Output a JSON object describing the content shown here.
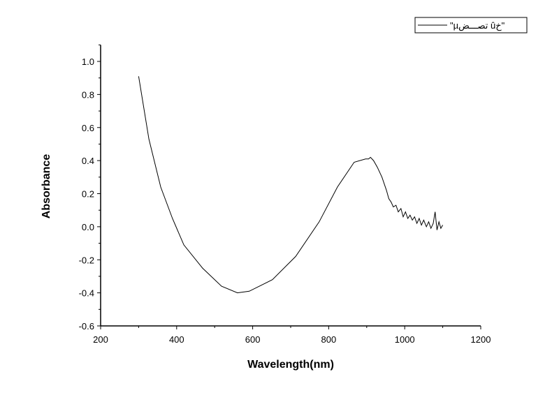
{
  "chart_data": {
    "type": "line",
    "title": "",
    "xlabel": "Wavelength(nm)",
    "ylabel": "Absorbance",
    "xlim": [
      200,
      1200
    ],
    "ylim": [
      -0.6,
      1.1
    ],
    "xticks": [
      200,
      400,
      600,
      800,
      1000,
      1200
    ],
    "yticks": [
      -0.6,
      -0.4,
      -0.2,
      0.0,
      0.2,
      0.4,
      0.6,
      0.8,
      1.0
    ],
    "ytick_labels": [
      "-0.6",
      "-0.4",
      "-0.2",
      "0.0",
      "0.2",
      "0.4",
      "0.6",
      "0.8",
      "1.0"
    ],
    "xtick_labels": [
      "200",
      "400",
      "600",
      "800",
      "1000",
      "1200"
    ],
    "grid": false,
    "legend_position": "top-right",
    "series": [
      {
        "name": "\"µتصـــض ûخ\"",
        "color": "#000000",
        "x": [
          300,
          327,
          358,
          389,
          419,
          468,
          518,
          560,
          591,
          652,
          713,
          775,
          823,
          867,
          897,
          905,
          910,
          918,
          928,
          940,
          952,
          958,
          964,
          970,
          977,
          983,
          990,
          996,
          1002,
          1008,
          1014,
          1020,
          1026,
          1032,
          1038,
          1044,
          1050,
          1057,
          1063,
          1069,
          1075,
          1080,
          1085,
          1090,
          1095,
          1100
        ],
        "y": [
          0.91,
          0.53,
          0.24,
          0.05,
          -0.11,
          -0.25,
          -0.36,
          -0.4,
          -0.39,
          -0.32,
          -0.18,
          0.03,
          0.24,
          0.39,
          0.41,
          0.41,
          0.42,
          0.4,
          0.36,
          0.3,
          0.22,
          0.17,
          0.15,
          0.12,
          0.13,
          0.09,
          0.11,
          0.06,
          0.09,
          0.05,
          0.07,
          0.04,
          0.06,
          0.02,
          0.05,
          0.01,
          0.04,
          0.0,
          0.03,
          -0.01,
          0.02,
          0.09,
          -0.02,
          0.03,
          -0.01,
          0.01
        ]
      }
    ]
  }
}
